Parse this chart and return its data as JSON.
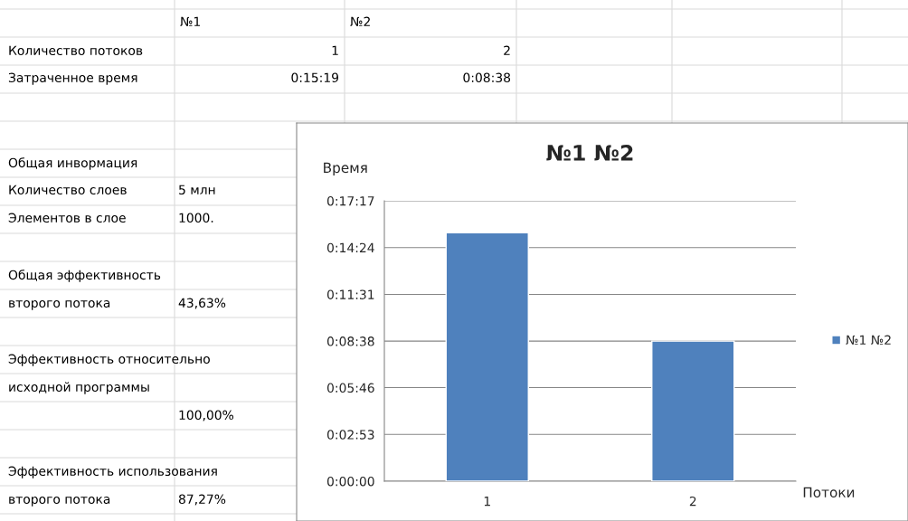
{
  "chart_data": [
    {
      "type": "other",
      "annotations": [
        "№1",
        "№2",
        "Количество потоков",
        "1",
        "2",
        "Затраченное время",
        "0:15:19",
        "0:08:38",
        "Общая инвормация",
        "Количество слоев",
        "5 млн",
        "Элементов в слое",
        "1000.",
        "Общая эффективность",
        "второго потока",
        "43,63%",
        "Эффективность относительно",
        "исходной программы",
        "100,00%",
        "Эффективность использования",
        "второго потока",
        "87,27%"
      ]
    },
    {
      "type": "bar",
      "title": "№1 №2",
      "xlabel": "Потоки",
      "ylabel": "Время",
      "categories": [
        "1",
        "2"
      ],
      "series": [
        {
          "name": "№1 №2",
          "color": "#4f81bd",
          "values": [
            919,
            518
          ]
        }
      ],
      "ylim": [
        0,
        1037
      ],
      "yticks": [
        {
          "value": 0,
          "label": "0:00:00"
        },
        {
          "value": 173,
          "label": "0:02:53"
        },
        {
          "value": 346,
          "label": "0:05:46"
        },
        {
          "value": 518,
          "label": "0:08:38"
        },
        {
          "value": 691,
          "label": "0:11:31"
        },
        {
          "value": 864,
          "label": "0:14:24"
        },
        {
          "value": 1037,
          "label": "0:17:17"
        }
      ],
      "grid": "y",
      "legend": "right"
    }
  ]
}
